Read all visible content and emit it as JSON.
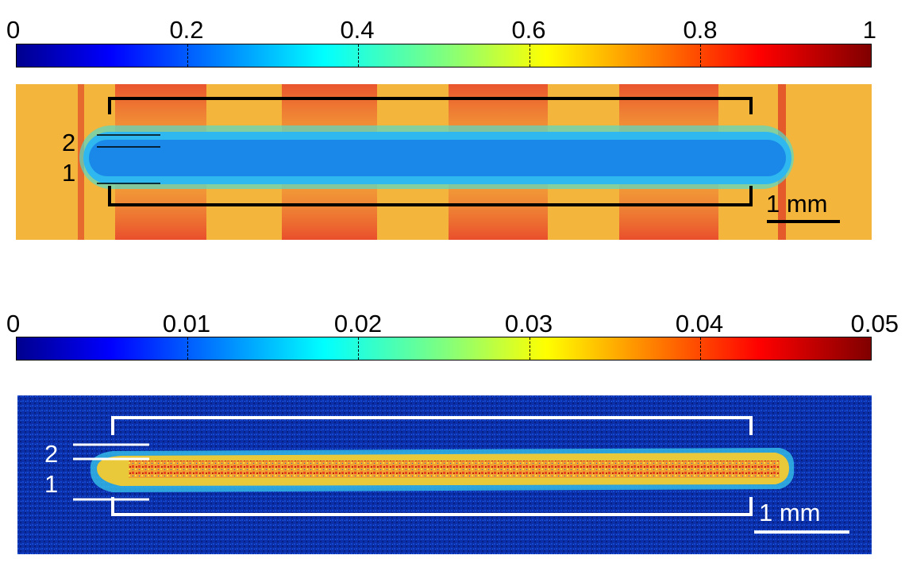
{
  "panels": [
    {
      "colorbar": {
        "ticks": [
          "0",
          "0.2",
          "0.4",
          "0.6",
          "0.8",
          "1"
        ],
        "colormap": "jet"
      },
      "image": {
        "background_color": "#f3b53c",
        "band_color": "#f05a26",
        "stripe_color": "#1a88e8",
        "frame_color": "#000000",
        "line_markers": [
          "2",
          "1"
        ],
        "scale_bar": "1 mm"
      }
    },
    {
      "colorbar": {
        "ticks": [
          "0",
          "0.01",
          "0.02",
          "0.03",
          "0.04",
          "0.05"
        ],
        "colormap": "jet"
      },
      "image": {
        "background_color": "#0a2fa8",
        "stripe_color": "#e9c83a",
        "frame_color": "#ffffff",
        "line_markers": [
          "2",
          "1"
        ],
        "scale_bar": "1 mm"
      }
    }
  ]
}
